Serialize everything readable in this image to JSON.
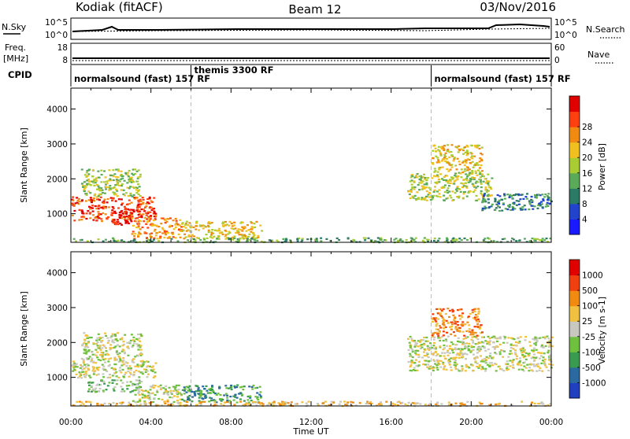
{
  "header": {
    "station": "Kodiak (fitACF)",
    "beam": "Beam 12",
    "date": "03/Nov/2016"
  },
  "strip_labels": {
    "nsky": "N.Sky",
    "nsearch": "N.Search",
    "freq_line1": "Freq.",
    "freq_line2": "[MHz]",
    "nave": "Nave",
    "cpid": "CPID",
    "nsky_top": "10^5",
    "nsky_bottom": "10^0",
    "nsearch_top": "10^5",
    "nsearch_bottom": "10^0",
    "freq_top": "18",
    "freq_bottom": "8",
    "nave_top": "60",
    "nave_bottom": "0"
  },
  "cpid_segments": [
    {
      "label": "normalsound (fast) 157 RF",
      "start_hour": 0
    },
    {
      "label": "themis 3300 RF",
      "start_hour": 6
    },
    {
      "label": "normalsound (fast) 157 RF",
      "start_hour": 18
    }
  ],
  "chart_data": [
    {
      "type": "heatmap",
      "panel": "power",
      "ylabel": "Slant Range [km]",
      "ylim": [
        180,
        4600
      ],
      "yticks": [
        "1000",
        "2000",
        "3000",
        "4000"
      ],
      "ytick_values": [
        1000,
        2000,
        3000,
        4000
      ],
      "colorbar_label": "Power [dB]",
      "colorbar_ticks": [
        "4",
        "8",
        "12",
        "16",
        "20",
        "24",
        "28"
      ],
      "colorbar_colors": [
        "#1a1aff",
        "#2244cc",
        "#2a7a66",
        "#5aaa5a",
        "#aacc33",
        "#f0c020",
        "#f08a10",
        "#ff4010",
        "#e00000"
      ],
      "regions": [
        {
          "t0": 0.0,
          "t1": 4.2,
          "r0": 800,
          "r1": 1500,
          "level": 7
        },
        {
          "t0": 0.5,
          "t1": 3.5,
          "r0": 1500,
          "r1": 2300,
          "level": 4
        },
        {
          "t0": 2.0,
          "t1": 3.0,
          "r0": 700,
          "r1": 1100,
          "level": 8
        },
        {
          "t0": 3.0,
          "t1": 5.5,
          "r0": 300,
          "r1": 900,
          "level": 6
        },
        {
          "t0": 5.5,
          "t1": 9.5,
          "r0": 300,
          "r1": 800,
          "level": 5
        },
        {
          "t0": 0.0,
          "t1": 24.0,
          "r0": 200,
          "r1": 330,
          "level": 3
        },
        {
          "t0": 16.8,
          "t1": 21.0,
          "r0": 1400,
          "r1": 2200,
          "level": 4
        },
        {
          "t0": 18.0,
          "t1": 20.5,
          "r0": 2200,
          "r1": 3000,
          "level": 5
        },
        {
          "t0": 20.5,
          "t1": 24.0,
          "r0": 1100,
          "r1": 1600,
          "level": 2
        }
      ]
    },
    {
      "type": "heatmap",
      "panel": "velocity",
      "ylabel": "Slant Range [km]",
      "xlabel": "Time UT",
      "xlim": [
        0,
        24
      ],
      "xticks": [
        "00:00",
        "04:00",
        "08:00",
        "12:00",
        "16:00",
        "20:00",
        "00:00"
      ],
      "ylim": [
        180,
        4600
      ],
      "yticks": [
        "1000",
        "2000",
        "3000",
        "4000"
      ],
      "ytick_values": [
        1000,
        2000,
        3000,
        4000
      ],
      "colorbar_label": "Velocity [m s-1]",
      "colorbar_ticks": [
        "1000",
        "500",
        "100",
        "25",
        "-25",
        "-100",
        "-500",
        "-1000"
      ],
      "colorbar_colors": [
        "#2040c0",
        "#2a6aa0",
        "#3a9a50",
        "#70c040",
        "#c8c8c0",
        "#f0c040",
        "#f08a10",
        "#f04010",
        "#e00000"
      ],
      "regions": [
        {
          "t0": 0.0,
          "t1": 4.2,
          "r0": 1000,
          "r1": 1500,
          "level": 4
        },
        {
          "t0": 0.5,
          "t1": 3.5,
          "r0": 1500,
          "r1": 2300,
          "level": 4
        },
        {
          "t0": 0.8,
          "t1": 3.5,
          "r0": 600,
          "r1": 950,
          "level": 3
        },
        {
          "t0": 3.0,
          "t1": 5.5,
          "r0": 300,
          "r1": 800,
          "level": 4
        },
        {
          "t0": 5.5,
          "t1": 9.5,
          "r0": 300,
          "r1": 800,
          "level": 2
        },
        {
          "t0": 0.0,
          "t1": 24.0,
          "r0": 200,
          "r1": 330,
          "level": 5
        },
        {
          "t0": 16.8,
          "t1": 24.0,
          "r0": 1200,
          "r1": 2200,
          "level": 4
        },
        {
          "t0": 18.0,
          "t1": 20.5,
          "r0": 2200,
          "r1": 3000,
          "level": 6
        }
      ]
    }
  ]
}
